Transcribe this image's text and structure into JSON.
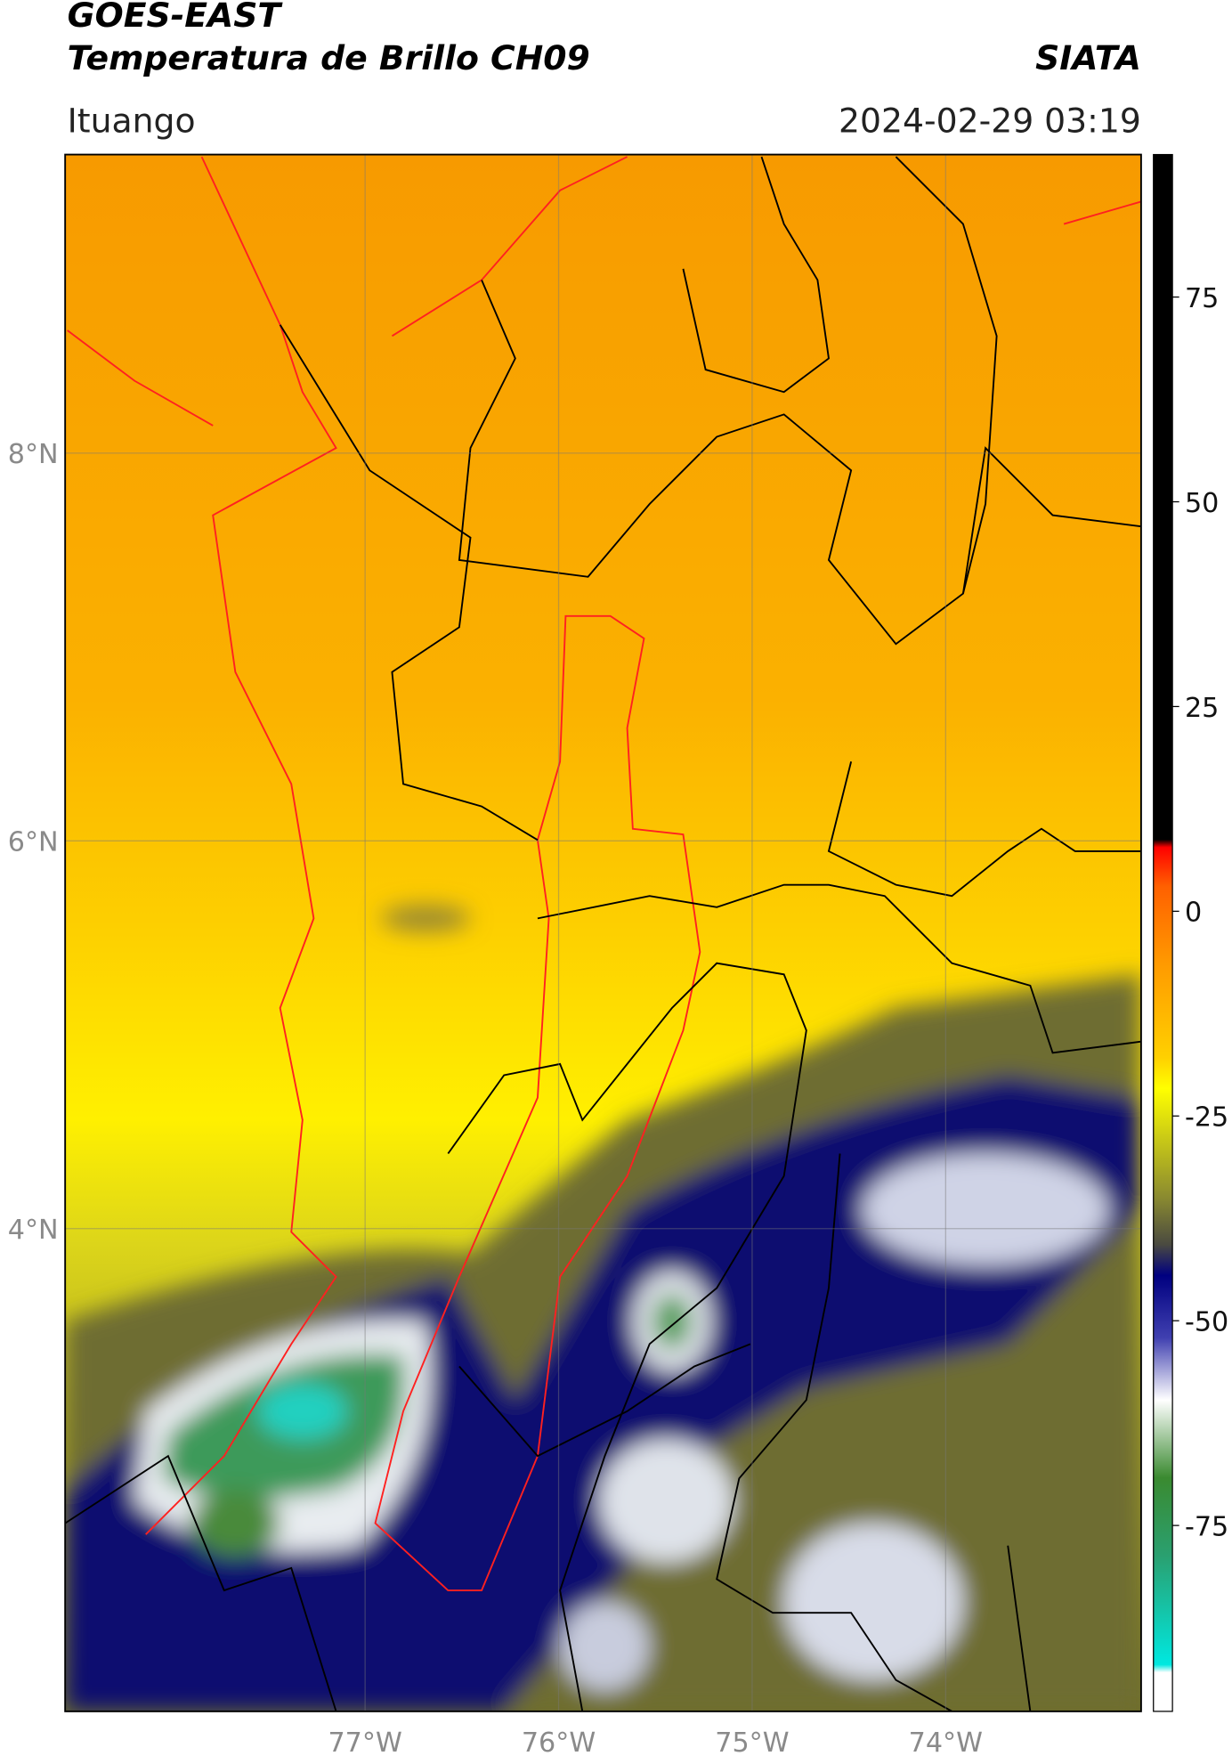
{
  "header": {
    "title": "GOES-EAST",
    "subtitle": "Temperatura de Brillo CH09",
    "source": "SIATA",
    "region": "Ituango",
    "datetime": "2024-02-29 03:19"
  },
  "map": {
    "xlim": [
      -78.55,
      -72.99
    ],
    "ylim": [
      1.51,
      9.54
    ],
    "xticks": [
      {
        "value": -77,
        "label": "77°W"
      },
      {
        "value": -76,
        "label": "76°W"
      },
      {
        "value": -75,
        "label": "75°W"
      },
      {
        "value": -74,
        "label": "74°W"
      }
    ],
    "yticks": [
      {
        "value": 8,
        "label": "8°N"
      },
      {
        "value": 6,
        "label": "6°N"
      },
      {
        "value": 4,
        "label": "4°N"
      }
    ],
    "grid": true
  },
  "colorbar": {
    "lim": [
      -97.7,
      92.4
    ],
    "ticks": [
      75,
      50,
      25,
      0,
      -25,
      -50,
      -75
    ]
  }
}
